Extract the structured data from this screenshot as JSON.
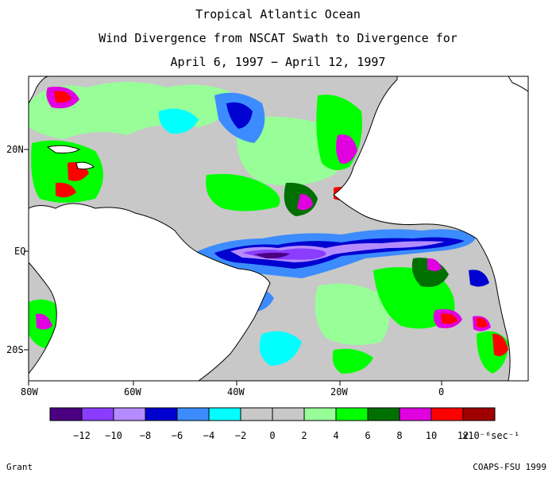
{
  "title": {
    "line1": "Tropical Atlantic Ocean",
    "line2": "Wind Divergence from NSCAT Swath to Divergence for",
    "line3": "April 6, 1997 − April 12, 1997"
  },
  "axes": {
    "lon_labels": [
      "80W",
      "60W",
      "40W",
      "20W",
      "0"
    ],
    "lat_labels": [
      "20N",
      "EQ",
      "20S"
    ]
  },
  "colorbar": {
    "colors": [
      "#4b0082",
      "#8a3cff",
      "#b58cff",
      "#0000d0",
      "#3c8cff",
      "#00ffff",
      "#c8c8c8",
      "#c8c8c8",
      "#98ff98",
      "#00ff00",
      "#007000",
      "#e000e0",
      "#ff0000",
      "#a00000"
    ],
    "tick_labels": [
      "-12",
      "-10",
      "-8",
      "-6",
      "-4",
      "-2",
      "0",
      "2",
      "4",
      "6",
      "8",
      "10",
      "12"
    ],
    "units": "x10⁻⁶sec⁻¹"
  },
  "credits": {
    "left": "Grant",
    "right": "COAPS-FSU 1999"
  }
}
